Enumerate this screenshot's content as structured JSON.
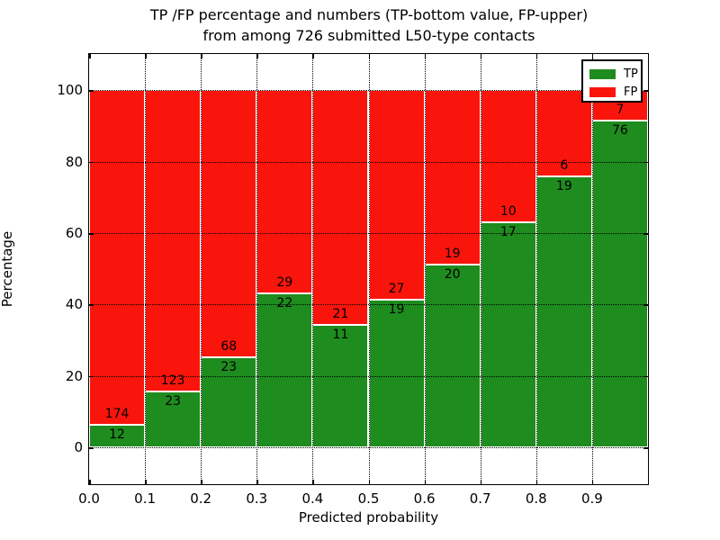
{
  "title_line1": "TP /FP percentage and numbers (TP-bottom value, FP-upper)",
  "title_line2": "from among 726 submitted L50-type contacts",
  "axes": {
    "xlabel": "Predicted probability",
    "ylabel": "Percentage",
    "x_tick_labels": [
      "0.0",
      "0.1",
      "0.2",
      "0.3",
      "0.4",
      "0.5",
      "0.6",
      "0.7",
      "0.8",
      "0.9"
    ],
    "y_tick_labels": [
      "0",
      "20",
      "40",
      "60",
      "80",
      "100"
    ]
  },
  "legend": {
    "position": "upper right",
    "items": [
      {
        "label": "TP",
        "color": "#1e8c1e"
      },
      {
        "label": "FP",
        "color": "#f9150c"
      }
    ]
  },
  "chart_data": {
    "type": "bar",
    "stacked": true,
    "normalized_to_percent": true,
    "title": "TP /FP percentage and numbers (TP-bottom value, FP-upper) from among 726 submitted L50-type contacts",
    "xlabel": "Predicted probability",
    "ylabel": "Percentage",
    "total_contacts": 726,
    "bin_width": 0.1,
    "x_bins": [
      0.0,
      0.1,
      0.2,
      0.3,
      0.4,
      0.5,
      0.6,
      0.7,
      0.8,
      0.9
    ],
    "series": [
      {
        "name": "TP",
        "color": "#1e8c1e",
        "counts": [
          12,
          23,
          23,
          22,
          11,
          19,
          20,
          17,
          19,
          76
        ]
      },
      {
        "name": "FP",
        "color": "#f9150c",
        "counts": [
          174,
          123,
          68,
          29,
          21,
          27,
          19,
          10,
          6,
          7
        ]
      }
    ],
    "tp_percent_approx": [
      6.5,
      15.8,
      25.3,
      43.1,
      34.4,
      41.3,
      51.3,
      63.0,
      76.0,
      91.6
    ],
    "xlim": [
      0.0,
      1.0
    ],
    "ylim": [
      -10.3,
      110.2
    ],
    "xticks": [
      0.0,
      0.1,
      0.2,
      0.3,
      0.4,
      0.5,
      0.6,
      0.7,
      0.8,
      0.9
    ],
    "yticks": [
      0,
      20,
      40,
      60,
      80,
      100
    ],
    "grid": true,
    "grid_style": "dotted",
    "bar_edge_color": "#ffffff",
    "legend_position": "upper right"
  }
}
